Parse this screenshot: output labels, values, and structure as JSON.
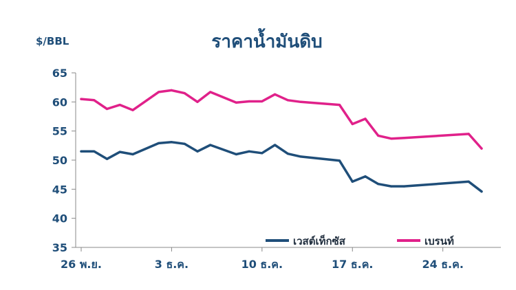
{
  "chart_data": {
    "type": "line",
    "title": "ราคาน้ำมันดิบ",
    "ylabel": "$/BBL",
    "xlabel": "",
    "ylim": [
      35,
      65
    ],
    "yticks": [
      35,
      40,
      45,
      50,
      55,
      60,
      65
    ],
    "x_tick_labels": [
      "26 พ.ย.",
      "3 ธ.ค.",
      "10 ธ.ค.",
      "17 ธ.ค.",
      "24 ธ.ค."
    ],
    "x_tick_days": [
      0,
      7,
      14,
      21,
      28
    ],
    "x_range_days": [
      0,
      31
    ],
    "grid": false,
    "legend_position": "bottom-right",
    "series": [
      {
        "name": "เวสต์เท็กซัส",
        "color": "#1f4e79",
        "days": [
          0,
          1,
          2,
          3,
          4,
          6,
          7,
          8,
          9,
          10,
          12,
          13,
          14,
          15,
          16,
          17,
          20,
          21,
          22,
          23,
          24,
          25,
          30,
          31
        ],
        "values": [
          51.5,
          51.5,
          50.2,
          51.4,
          51.0,
          52.9,
          53.1,
          52.8,
          51.5,
          52.6,
          51.0,
          51.5,
          51.2,
          52.6,
          51.1,
          50.6,
          49.9,
          46.3,
          47.2,
          45.9,
          45.5,
          45.5,
          46.3,
          44.6
        ]
      },
      {
        "name": "เบรนท์",
        "color": "#e0218a",
        "days": [
          0,
          1,
          2,
          3,
          4,
          6,
          7,
          8,
          9,
          10,
          12,
          13,
          14,
          15,
          16,
          17,
          20,
          21,
          22,
          23,
          24,
          25,
          30,
          31
        ],
        "values": [
          60.5,
          60.3,
          58.8,
          59.5,
          58.6,
          61.7,
          62.0,
          61.5,
          60.0,
          61.7,
          59.9,
          60.1,
          60.1,
          61.3,
          60.3,
          60.0,
          59.5,
          56.2,
          57.1,
          54.2,
          53.7,
          53.8,
          54.5,
          52.0
        ]
      }
    ]
  }
}
